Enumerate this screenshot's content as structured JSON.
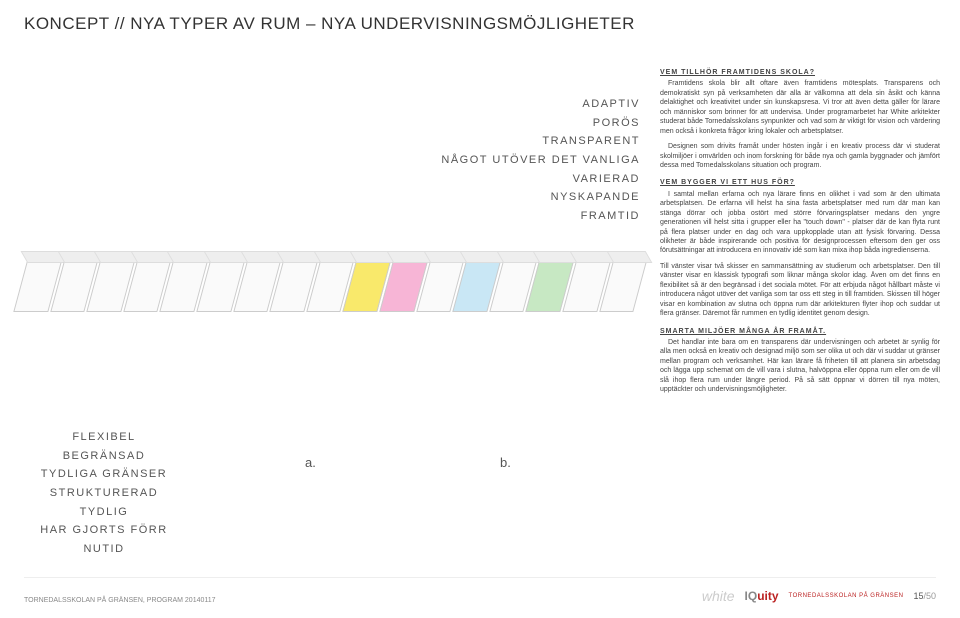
{
  "title": "KONCEPT // NYA TYPER AV RUM – NYA UNDERVISNINGSMÖJLIGHETER",
  "keywordsRight": [
    "ADAPTIV",
    "PORÖS",
    "TRANSPARENT",
    "NÅGOT UTÖVER DET VANLIGA",
    "VARIERAD",
    "NYSKAPANDE",
    "FRAMTID"
  ],
  "keywordsLeft": [
    "FLEXIBEL",
    "BEGRÄNSAD",
    "TYDLIGA GRÄNSER",
    "STRUKTURERAD",
    "TYDLIG",
    "HAR GJORTS FÖRR",
    "NUTID"
  ],
  "letterA": "a.",
  "letterB": "b.",
  "rooms": [
    {
      "color": null
    },
    {
      "color": null
    },
    {
      "color": null
    },
    {
      "color": null
    },
    {
      "color": null
    },
    {
      "color": null
    },
    {
      "color": null
    },
    {
      "color": null
    },
    {
      "color": null
    },
    {
      "color": "yellow"
    },
    {
      "color": "pink"
    },
    {
      "color": null
    },
    {
      "color": "blue"
    },
    {
      "color": null
    },
    {
      "color": "green"
    },
    {
      "color": null
    },
    {
      "color": null
    }
  ],
  "sections": {
    "h1": "VEM TILLHÖR FRAMTIDENS SKOLA?",
    "p1": "Framtidens skola blir allt oftare även framtidens mötesplats. Transparens och demokratiskt syn på verksamheten där alla är välkomna att dela sin åsikt och känna delaktighet och kreativitet under sin kunskapsresa. Vi tror att även detta gäller för lärare och människor som brinner för att undervisa. Under programarbetet har White arkitekter studerat både Tornedalsskolans synpunkter och vad som är viktigt för vision och värdering men också i konkreta frågor kring lokaler och arbetsplatser.",
    "p2": "Designen som drivits framåt under hösten ingår i en kreativ process där vi studerat skolmiljöer i omvärlden och inom forskning för både nya och gamla byggnader och jämfört dessa med Tornedalsskolans situation och program.",
    "h2": "VEM BYGGER VI ETT HUS FÖR?",
    "p3": "I samtal mellan erfarna och nya lärare finns en olikhet i vad som är den ultimata arbetsplatsen. De erfarna vill helst ha sina fasta arbetsplatser med rum där man kan stänga dörrar och jobba ostört med större förvaringsplatser medans den yngre generationen vill helst sitta i grupper eller ha \"touch down\" - platser där de kan flyta runt på flera platser under en dag och vara uppkopplade utan att fysisk förvaring. Dessa olikheter är både inspirerande och positiva för designprocessen eftersom den ger oss förutsättningar att introducera en innovativ idé som kan mixa ihop båda ingredienserna.",
    "p4": "Till vänster visar två skisser en sammansättning av studierum och arbetsplatser. Den till vänster visar en klassisk typografi som liknar många skolor idag. Även om det finns en flexibilitet så är den begränsad i det sociala mötet. För att erbjuda något hållbart måste vi introducera något utöver det vanliga som tar oss ett steg in till framtiden. Skissen till höger visar en kombination av slutna och öppna rum där arkitekturen flyter ihop och suddar ut flera gränser. Däremot får rummen en tydlig identitet genom design.",
    "h3": "SMARTA MILJÖER MÅNGA ÅR FRAMÅT.",
    "p5": "Det handlar inte bara om en transparens där undervisningen och arbetet är synlig för alla men också en kreativ och designad miljö som ser olika ut och där vi suddar ut gränser mellan program och verksamhet. Här kan lärare få friheten till att planera sin arbetsdag och lägga upp schemat om de vill vara i slutna, halvöppna eller öppna rum eller om de vill slå ihop flera rum under längre period. På så sätt öppnar vi dörren till nya möten, upptäckter och undervisningsmöjligheter."
  },
  "footer": {
    "doc": "TORNEDALSSKOLAN PÅ GRÄNSEN, PROGRAM 20140117",
    "logoWhite": "white",
    "logoIQ_pre": "IQ",
    "logoIQ_suf": "uity",
    "schoolLine1": "TORNEDALSSKOLAN PÅ GRÄNSEN",
    "pageCur": "15",
    "pageTotal": "/50"
  },
  "colors": {
    "accent_red": "#b22222",
    "text": "#333333",
    "muted": "#888888"
  }
}
